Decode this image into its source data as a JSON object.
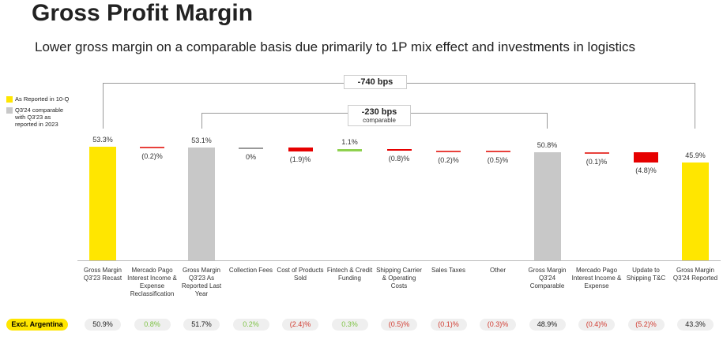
{
  "chart_data": {
    "type": "waterfall",
    "title": "Gross Profit Margin",
    "subtitle": "Lower gross margin on a comparable basis due primarily to 1P mix effect and investments in logistics",
    "legend": [
      {
        "name": "As Reported in 10-Q",
        "color": "#ffe600"
      },
      {
        "name": "Q3'24 comparable with Q3'23 as reported in 2023",
        "color": "#c8c8c8"
      }
    ],
    "categories": [
      "Gross Margin Q3'23 Recast",
      "Mercado Pago Interest Income & Expense Reclassification",
      "Gross Margin Q3'23 As Reported Last Year",
      "Collection Fees",
      "Cost of Products Sold",
      "Fintech & Credit Funding",
      "Shipping Carrier & Operating Costs",
      "Sales Taxes",
      "Other",
      "Gross Margin Q3'24 Comparable",
      "Mercado Pago Interest Income & Expense",
      "Update to Shipping T&C",
      "Gross Margin Q3'24 Reported"
    ],
    "measure": [
      "total",
      "relative",
      "total",
      "relative",
      "relative",
      "relative",
      "relative",
      "relative",
      "relative",
      "total",
      "relative",
      "relative",
      "total"
    ],
    "values": [
      53.3,
      -0.2,
      53.1,
      0,
      -1.9,
      1.1,
      -0.8,
      -0.2,
      -0.5,
      50.8,
      -0.1,
      -4.8,
      45.9
    ],
    "value_labels": [
      "53.3%",
      "(0.2)%",
      "53.1%",
      "0%",
      "(1.9)%",
      "1.1%",
      "(0.8)%",
      "(0.2)%",
      "(0.5)%",
      "50.8%",
      "(0.1)%",
      "(4.8)%",
      "45.9%"
    ],
    "colors": [
      "#ffe600",
      "#e8413c",
      "#c8c8c8",
      "#999999",
      "#e60000",
      "#8fd14f",
      "#e60000",
      "#e8413c",
      "#e8413c",
      "#c8c8c8",
      "#e8413c",
      "#e60000",
      "#ffe600"
    ],
    "brackets": [
      {
        "text": "-740 bps",
        "from": 0,
        "to": 12
      },
      {
        "text": "-230 bps",
        "subtext": "comparable",
        "from": 2,
        "to": 9
      }
    ],
    "extra_row": {
      "label": "Excl. Argentina",
      "values": [
        50.9,
        0.8,
        51.7,
        0.2,
        -2.4,
        0.3,
        -0.5,
        -0.1,
        -0.3,
        48.9,
        -0.4,
        -5.2,
        43.3
      ],
      "value_labels": [
        "50.9%",
        "0.8%",
        "51.7%",
        "0.2%",
        "(2.4)%",
        "0.3%",
        "(0.5)%",
        "(0.1)%",
        "(0.3)%",
        "48.9%",
        "(0.4)%",
        "(5.2)%",
        "43.3%"
      ]
    }
  }
}
